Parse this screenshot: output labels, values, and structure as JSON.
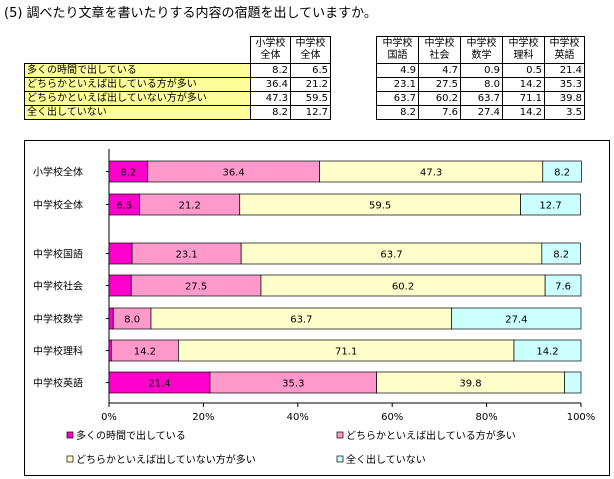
{
  "title": "(5) 調べたり文章を書いたりする内容の宿題を出していますか。",
  "table": {
    "columns": [
      [
        "小学校",
        "全体"
      ],
      [
        "中学校",
        "全体"
      ],
      [
        "中学校",
        "国語"
      ],
      [
        "中学校",
        "社会"
      ],
      [
        "中学校",
        "数学"
      ],
      [
        "中学校",
        "理科"
      ],
      [
        "中学校",
        "英語"
      ]
    ],
    "rows": [
      {
        "label": "多くの時間で出している",
        "values": [
          "8.2",
          "6.5",
          "4.9",
          "4.7",
          "0.9",
          "0.5",
          "21.4"
        ]
      },
      {
        "label": "どちらかといえば出している方が多い",
        "values": [
          "36.4",
          "21.2",
          "23.1",
          "27.5",
          "8.0",
          "14.2",
          "35.3"
        ]
      },
      {
        "label": "どちらかといえば出していない方が多い",
        "values": [
          "47.3",
          "59.5",
          "63.7",
          "60.2",
          "63.7",
          "71.1",
          "39.8"
        ]
      },
      {
        "label": "全く出していない",
        "values": [
          "8.2",
          "12.7",
          "8.2",
          "7.6",
          "27.4",
          "14.2",
          "3.5"
        ]
      }
    ]
  },
  "chart_data": {
    "type": "bar",
    "orientation": "horizontal",
    "stacked": "percent",
    "categories": [
      "小学校全体",
      "中学校全体",
      "中学校国語",
      "中学校社会",
      "中学校数学",
      "中学校理科",
      "中学校英語"
    ],
    "series": [
      {
        "name": "多くの時間で出している",
        "color": "#ff00cc",
        "values": [
          8.2,
          6.5,
          4.9,
          4.7,
          0.9,
          0.5,
          21.4
        ]
      },
      {
        "name": "どちらかといえば出している方が多い",
        "color": "#ff99cc",
        "values": [
          36.4,
          21.2,
          23.1,
          27.5,
          8.0,
          14.2,
          35.3
        ]
      },
      {
        "name": "どちらかといえば出していない方が多い",
        "color": "#ffffcc",
        "values": [
          47.3,
          59.5,
          63.7,
          60.2,
          63.7,
          71.1,
          39.8
        ]
      },
      {
        "name": "全く出していない",
        "color": "#ccffff",
        "values": [
          8.2,
          12.7,
          8.2,
          7.6,
          27.4,
          14.2,
          3.5
        ]
      }
    ],
    "data_labels": [
      [
        "8.2",
        "36.4",
        "47.3",
        "8.2"
      ],
      [
        "6.5",
        "21.2",
        "59.5",
        "12.7"
      ],
      [
        "",
        "23.1",
        "63.7",
        "8.2"
      ],
      [
        "",
        "27.5",
        "60.2",
        "7.6"
      ],
      [
        "",
        "8.0",
        "63.7",
        "27.4"
      ],
      [
        "",
        "14.2",
        "71.1",
        "14.2"
      ],
      [
        "21.4",
        "35.3",
        "39.8",
        ""
      ]
    ],
    "x_ticks": [
      "0%",
      "20%",
      "40%",
      "60%",
      "80%",
      "100%"
    ],
    "xlim": [
      0,
      100
    ],
    "grid": false,
    "legend_position": "bottom"
  }
}
